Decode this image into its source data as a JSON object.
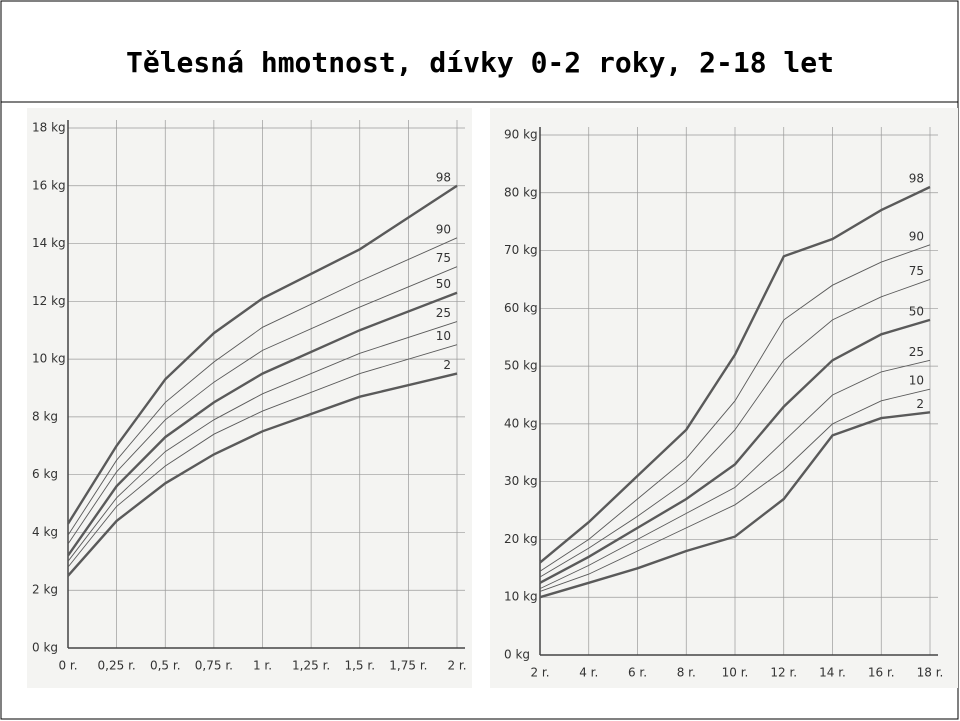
{
  "title": "Tělesná hmotnost, dívky 0-2 roky, 2-18 let",
  "chart_data": [
    {
      "type": "line",
      "grid": true,
      "color": "#5a5a5a",
      "x": [
        0,
        0.25,
        0.5,
        0.75,
        1,
        1.5,
        2
      ],
      "xlim": [
        0,
        2
      ],
      "xticks": [
        {
          "value": 0,
          "label": "0 r."
        },
        {
          "value": 0.25,
          "label": "0,25 r."
        },
        {
          "value": 0.5,
          "label": "0,5 r."
        },
        {
          "value": 0.75,
          "label": "0,75 r."
        },
        {
          "value": 1,
          "label": "1 r."
        },
        {
          "value": 1.25,
          "label": "1,25 r."
        },
        {
          "value": 1.5,
          "label": "1,5 r."
        },
        {
          "value": 1.75,
          "label": "1,75 r."
        },
        {
          "value": 2,
          "label": "2 r."
        }
      ],
      "ylim": [
        0,
        18
      ],
      "yticks": [
        {
          "value": 0,
          "label": "0 kg"
        },
        {
          "value": 2,
          "label": "2 kg"
        },
        {
          "value": 4,
          "label": "4 kg"
        },
        {
          "value": 6,
          "label": "6 kg"
        },
        {
          "value": 8,
          "label": "8 kg"
        },
        {
          "value": 10,
          "label": "10 kg"
        },
        {
          "value": 12,
          "label": "12 kg"
        },
        {
          "value": 14,
          "label": "14 kg"
        },
        {
          "value": 16,
          "label": "16 kg"
        },
        {
          "value": 18,
          "label": "18 kg"
        }
      ],
      "series": [
        {
          "name": "98",
          "width": 2.4,
          "values": [
            4.3,
            7.0,
            9.3,
            10.9,
            12.1,
            13.8,
            16.0
          ]
        },
        {
          "name": "90",
          "width": 0.9,
          "values": [
            3.9,
            6.5,
            8.5,
            9.9,
            11.1,
            12.7,
            14.2
          ]
        },
        {
          "name": "75",
          "width": 0.9,
          "values": [
            3.6,
            6.1,
            7.9,
            9.2,
            10.3,
            11.8,
            13.2
          ]
        },
        {
          "name": "50",
          "width": 2.4,
          "values": [
            3.2,
            5.6,
            7.3,
            8.5,
            9.5,
            11.0,
            12.3
          ]
        },
        {
          "name": "25",
          "width": 0.9,
          "values": [
            3.0,
            5.2,
            6.8,
            7.9,
            8.8,
            10.2,
            11.3
          ]
        },
        {
          "name": "10",
          "width": 0.9,
          "values": [
            2.8,
            4.9,
            6.3,
            7.4,
            8.2,
            9.5,
            10.5
          ]
        },
        {
          "name": "2",
          "width": 2.4,
          "values": [
            2.5,
            4.4,
            5.7,
            6.7,
            7.5,
            8.7,
            9.5
          ]
        }
      ]
    },
    {
      "type": "line",
      "grid": true,
      "color": "#5a5a5a",
      "x": [
        2,
        4,
        6,
        8,
        10,
        12,
        14,
        16,
        18
      ],
      "xlim": [
        2,
        18
      ],
      "xticks": [
        {
          "value": 2,
          "label": "2 r."
        },
        {
          "value": 4,
          "label": "4 r."
        },
        {
          "value": 6,
          "label": "6 r."
        },
        {
          "value": 8,
          "label": "8 r."
        },
        {
          "value": 10,
          "label": "10 r."
        },
        {
          "value": 12,
          "label": "12 r."
        },
        {
          "value": 14,
          "label": "14 r."
        },
        {
          "value": 16,
          "label": "16 r."
        },
        {
          "value": 18,
          "label": "18 r."
        }
      ],
      "ylim": [
        0,
        90
      ],
      "yticks": [
        {
          "value": 0,
          "label": "0 kg"
        },
        {
          "value": 10,
          "label": "10 kg"
        },
        {
          "value": 20,
          "label": "20 kg"
        },
        {
          "value": 30,
          "label": "30 kg"
        },
        {
          "value": 40,
          "label": "40 kg"
        },
        {
          "value": 50,
          "label": "50 kg"
        },
        {
          "value": 60,
          "label": "60 kg"
        },
        {
          "value": 70,
          "label": "70 kg"
        },
        {
          "value": 80,
          "label": "80 kg"
        },
        {
          "value": 90,
          "label": "90 kg"
        }
      ],
      "series": [
        {
          "name": "98",
          "width": 2.4,
          "values": [
            16,
            23,
            31,
            39,
            52,
            69,
            72,
            77,
            81
          ]
        },
        {
          "name": "90",
          "width": 0.9,
          "values": [
            14.5,
            20,
            27,
            34,
            44,
            58,
            64,
            68,
            71
          ]
        },
        {
          "name": "75",
          "width": 0.9,
          "values": [
            13.5,
            18.5,
            24,
            30,
            39,
            51,
            58,
            62,
            65
          ]
        },
        {
          "name": "50",
          "width": 2.4,
          "values": [
            12.5,
            17,
            22,
            27,
            33,
            43,
            51,
            55.5,
            58
          ]
        },
        {
          "name": "25",
          "width": 0.9,
          "values": [
            11.5,
            15.5,
            20,
            24.5,
            29,
            37,
            45,
            49,
            51
          ]
        },
        {
          "name": "10",
          "width": 0.9,
          "values": [
            11,
            14,
            18,
            22,
            26,
            32,
            40,
            44,
            46
          ]
        },
        {
          "name": "2",
          "width": 2.4,
          "values": [
            10,
            12.5,
            15,
            18,
            20.5,
            27,
            38,
            41,
            42
          ]
        }
      ]
    }
  ]
}
